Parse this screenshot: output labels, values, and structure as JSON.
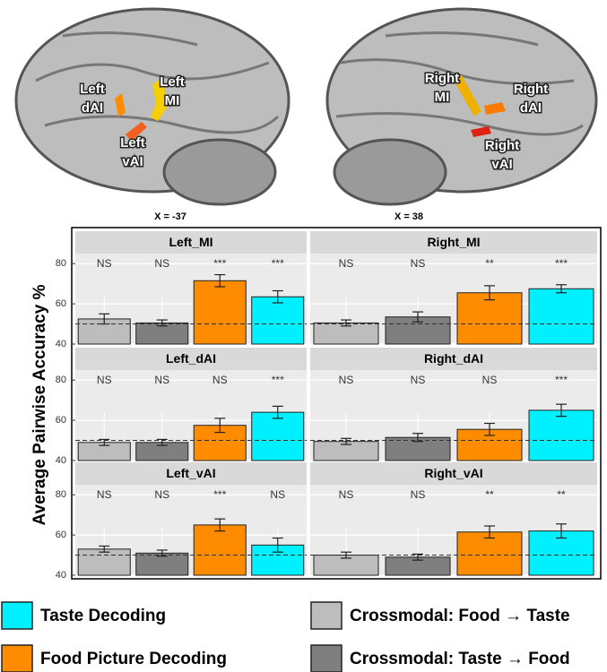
{
  "brain": {
    "left": {
      "labels": [
        [
          "Left",
          "dAI"
        ],
        [
          "Left",
          "MI"
        ],
        [
          "Left",
          "vAI"
        ]
      ],
      "coordinate": "X = -37"
    },
    "right": {
      "labels": [
        [
          "Right",
          "MI"
        ],
        [
          "Right",
          "dAI"
        ],
        [
          "Right",
          "vAI"
        ]
      ],
      "coordinate": "X = 38"
    }
  },
  "chart_data": {
    "type": "bar",
    "ylabel": "Average Pairwise Accuracy %",
    "ylim": [
      40,
      85
    ],
    "yticks": [
      40,
      60,
      80
    ],
    "grid": true,
    "reference_line": 50,
    "series": [
      {
        "name": "Crossmodal: Food → Taste",
        "color": "#bdbdbd"
      },
      {
        "name": "Crossmodal: Taste → Food",
        "color": "#7f7f7f"
      },
      {
        "name": "Food Picture Decoding",
        "color": "#ff8c00"
      },
      {
        "name": "Taste Decoding",
        "color": "#00f0ff"
      }
    ],
    "panels": [
      {
        "title": "Left_MI",
        "values": [
          52.5,
          50.5,
          71.5,
          63.5
        ],
        "errors": [
          2.5,
          1.5,
          3,
          3
        ],
        "annotations": [
          "NS",
          "NS",
          "***",
          "***"
        ]
      },
      {
        "title": "Right_MI",
        "values": [
          50.5,
          53.5,
          65.5,
          67.5
        ],
        "errors": [
          1.5,
          2.5,
          3.5,
          2
        ],
        "annotations": [
          "NS",
          "NS",
          "**",
          "***"
        ]
      },
      {
        "title": "Left_dAI",
        "values": [
          49,
          49,
          57.5,
          64
        ],
        "errors": [
          1.5,
          1.5,
          3.5,
          3
        ],
        "annotations": [
          "NS",
          "NS",
          "NS",
          "***"
        ]
      },
      {
        "title": "Right_dAI",
        "values": [
          49.5,
          51.5,
          55.5,
          65
        ],
        "errors": [
          1.5,
          2,
          3,
          3
        ],
        "annotations": [
          "NS",
          "NS",
          "NS",
          "***"
        ]
      },
      {
        "title": "Left_vAI",
        "values": [
          53,
          51,
          65,
          55
        ],
        "errors": [
          1.5,
          1.5,
          3,
          3.5
        ],
        "annotations": [
          "NS",
          "NS",
          "***",
          "NS"
        ]
      },
      {
        "title": "Right_vAI",
        "values": [
          50,
          49,
          61.5,
          62
        ],
        "errors": [
          1.5,
          1.5,
          3,
          3.5
        ],
        "annotations": [
          "NS",
          "NS",
          "**",
          "**"
        ]
      }
    ]
  }
}
